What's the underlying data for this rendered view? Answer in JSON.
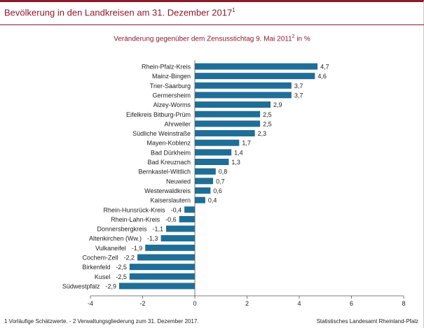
{
  "header": {
    "title": "Bevölkerung in den Landkreisen am 31. Dezember 2017",
    "title_sup": "1"
  },
  "footer": {
    "footnote": "1 Vorläufige Schätzwerte. - 2 Verwaltungsgliederung zum 31. Dezember 2017.",
    "source": "Statistisches Landesamt Rheinland-Pfalz"
  },
  "colors": {
    "bar": "#1f6e97",
    "accent": "#8b1a2b"
  },
  "chart_data": {
    "type": "bar",
    "orientation": "horizontal",
    "subtitle": "Veränderung gegenüber dem Zensusstichtag 9. Mai 2011",
    "subtitle_sup": "2",
    "subtitle_unit": "in %",
    "xlim": [
      -4,
      8
    ],
    "xticks": [
      "-4",
      "-2",
      "0",
      "2",
      "4",
      "6",
      "8"
    ],
    "grid": false,
    "categories": [
      "Rhein-Pfalz-Kreis",
      "Mainz-Bingen",
      "Trier-Saarburg",
      "Germersheim",
      "Alzey-Worms",
      "Eifelkreis Bitburg-Prüm",
      "Ahrweiler",
      "Südliche Weinstraße",
      "Mayen-Koblenz",
      "Bad Dürkheim",
      "Bad Kreuznach",
      "Bernkastel-Wittlich",
      "Neuwied",
      "Westerwaldkreis",
      "Kaiserslautern",
      "Rhein-Hunsrück-Kreis",
      "Rhein-Lahn-Kreis",
      "Donnersbergkreis",
      "Altenkirchen (Ww.)",
      "Vulkaneifel",
      "Cochem-Zell",
      "Birkenfeld",
      "Kusel",
      "Südwestpfalz"
    ],
    "values": [
      4.7,
      4.6,
      3.7,
      3.7,
      2.9,
      2.5,
      2.5,
      2.3,
      1.7,
      1.4,
      1.3,
      0.8,
      0.7,
      0.6,
      0.4,
      -0.4,
      -0.6,
      -1.1,
      -1.3,
      -1.9,
      -2.2,
      -2.5,
      -2.5,
      -2.9
    ],
    "value_labels": [
      "4,7",
      "4,6",
      "3,7",
      "3,7",
      "2,9",
      "2,5",
      "2,5",
      "2,3",
      "1,7",
      "1,4",
      "1,3",
      "0,8",
      "0,7",
      "0,6",
      "0,4",
      "-0,4",
      "-0,6",
      "-1,1",
      "-1,3",
      "-1,9",
      "-2,2",
      "-2,5",
      "-2,5",
      "-2,9"
    ]
  }
}
